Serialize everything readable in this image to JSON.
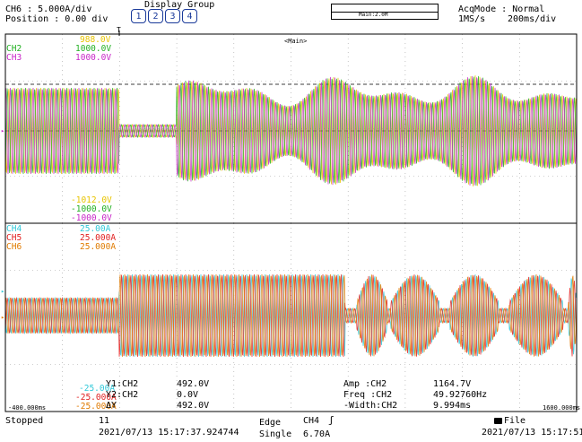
{
  "colors": {
    "ch1": "#e8c400",
    "ch2": "#22b022",
    "ch3": "#c826c8",
    "ch4": "#30c8d8",
    "ch5": "#e02020",
    "ch6": "#e07a00",
    "accent": "#1a3a9a",
    "grid": "#a0a0a0",
    "frame": "#000000"
  },
  "header": {
    "channel": "CH6",
    "channel_sep": ": 5.000A/div",
    "position": "Position : 0.00 div",
    "display_group": "Display Group",
    "groups": [
      "1",
      "2",
      "3",
      "4"
    ],
    "zoom_label": "Main:2.0M",
    "acq_mode": "AcqMode : Normal",
    "rate": "1MS/s",
    "time_div": "200ms/div"
  },
  "upper": {
    "window_label": "<Main>",
    "ch1_top": "988.0V",
    "ch2_name": "CH2",
    "ch2_top": "1000.0V",
    "ch3_name": "CH3",
    "ch3_top": "1000.0V",
    "ch1_bottom": "-1012.0V",
    "ch2_bottom": "-1000.0V",
    "ch3_bottom": "-1000.0V"
  },
  "lower": {
    "ch4_name": "CH4",
    "ch4_top": "25.00A",
    "ch5_name": "CH5",
    "ch5_top": "25.000A",
    "ch6_name": "CH6",
    "ch6_top": "25.000A",
    "ch4_bottom": "-25.00A",
    "ch5_bottom": "-25.000A",
    "ch6_bottom": "-25.000A",
    "time_left": "-400.000ms",
    "time_right": "1600.000ms"
  },
  "cursors": {
    "y1_label": "Y1:CH2",
    "y1_value": "492.0V",
    "y2_label": "Y2:CH2",
    "y2_value": "0.0V",
    "dy_label": "ΔY",
    "dy_value": "492.0V"
  },
  "measure": {
    "amp_label": "Amp :CH2",
    "amp_value": "1164.7V",
    "freq_label": "Freq :CH2",
    "freq_value": "49.92760Hz",
    "width_label": "-Width:CH2",
    "width_value": "9.994ms"
  },
  "status": {
    "state": "Stopped",
    "count": "11",
    "timestamp": "2021/07/13 15:17:37.924744",
    "trigger_type": "Edge",
    "trigger_source": "CH4",
    "trigger_slope_glyph": "ʃ",
    "trigger_mode": "Single",
    "trigger_level": "6.70A",
    "save_target": "File",
    "clock": "2021/07/13 15:17:51"
  },
  "markers": {
    "trigger_marker": "T",
    "upper_ref": "▸",
    "lower_ref_a": "▸",
    "lower_ref_b": "▸"
  }
}
